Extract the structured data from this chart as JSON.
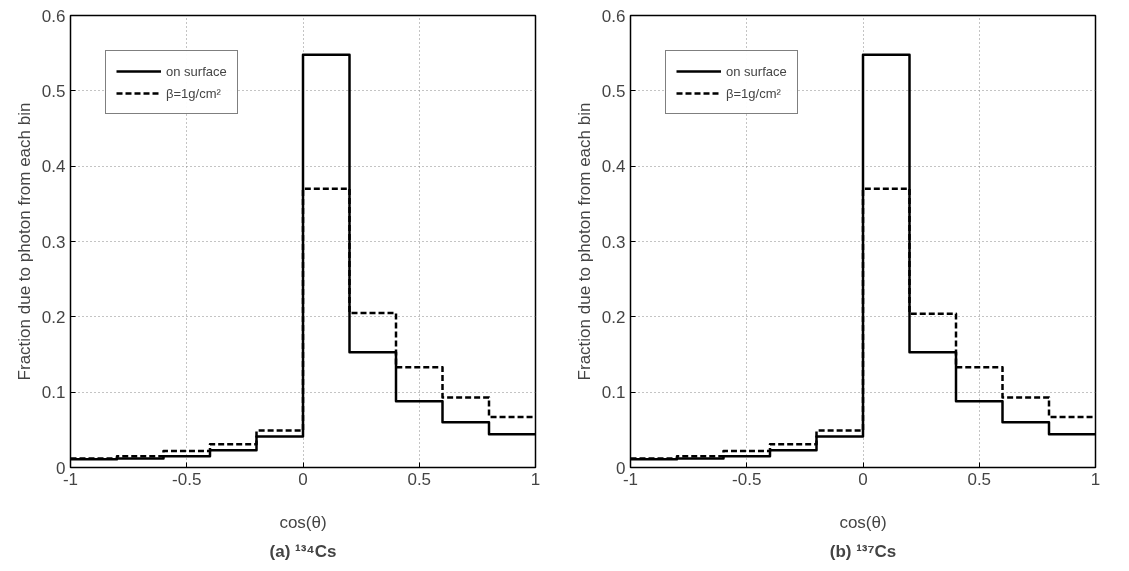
{
  "chart_data": [
    {
      "type": "histogram",
      "title": "(a) ¹³⁴Cs",
      "xlabel": "cos(θ)",
      "ylabel": "Fraction due to photon from each bin",
      "bins": [
        -1,
        -0.8,
        -0.6,
        -0.4,
        -0.2,
        0,
        0.2,
        0.4,
        0.6,
        0.8,
        1
      ],
      "series": [
        {
          "name": "on surface",
          "color": "#000000",
          "line_style": "solid",
          "values": [
            0.011,
            0.012,
            0.015,
            0.023,
            0.041,
            0.548,
            0.153,
            0.088,
            0.06,
            0.044
          ]
        },
        {
          "name": "β=1g/cm²",
          "color": "#000000",
          "line_style": "dashed",
          "values": [
            0.012,
            0.015,
            0.022,
            0.031,
            0.049,
            0.37,
            0.205,
            0.133,
            0.093,
            0.067
          ]
        }
      ],
      "xlim": [
        -1,
        1
      ],
      "xticks": [
        -1,
        -0.5,
        0,
        0.5,
        1
      ],
      "ylim": [
        0,
        0.6
      ],
      "yticks": [
        0,
        0.1,
        0.2,
        0.3,
        0.4,
        0.5,
        0.6
      ],
      "grid": true,
      "legend": "top left"
    },
    {
      "type": "histogram",
      "title": "(b) ¹³⁷Cs",
      "xlabel": "cos(θ)",
      "ylabel": "Fraction due to photon from each bin",
      "bins": [
        -1,
        -0.8,
        -0.6,
        -0.4,
        -0.2,
        0,
        0.2,
        0.4,
        0.6,
        0.8,
        1
      ],
      "series": [
        {
          "name": "on surface",
          "color": "#000000",
          "line_style": "solid",
          "values": [
            0.011,
            0.012,
            0.015,
            0.023,
            0.041,
            0.548,
            0.153,
            0.088,
            0.06,
            0.044
          ]
        },
        {
          "name": "β=1g/cm²",
          "color": "#000000",
          "line_style": "dashed",
          "values": [
            0.012,
            0.015,
            0.022,
            0.031,
            0.049,
            0.37,
            0.204,
            0.133,
            0.093,
            0.067
          ]
        }
      ],
      "xlim": [
        -1,
        1
      ],
      "xticks": [
        -1,
        -0.5,
        0,
        0.5,
        1
      ],
      "ylim": [
        0,
        0.6
      ],
      "yticks": [
        0,
        0.1,
        0.2,
        0.3,
        0.4,
        0.5,
        0.6
      ],
      "grid": true,
      "legend": "top left"
    }
  ]
}
